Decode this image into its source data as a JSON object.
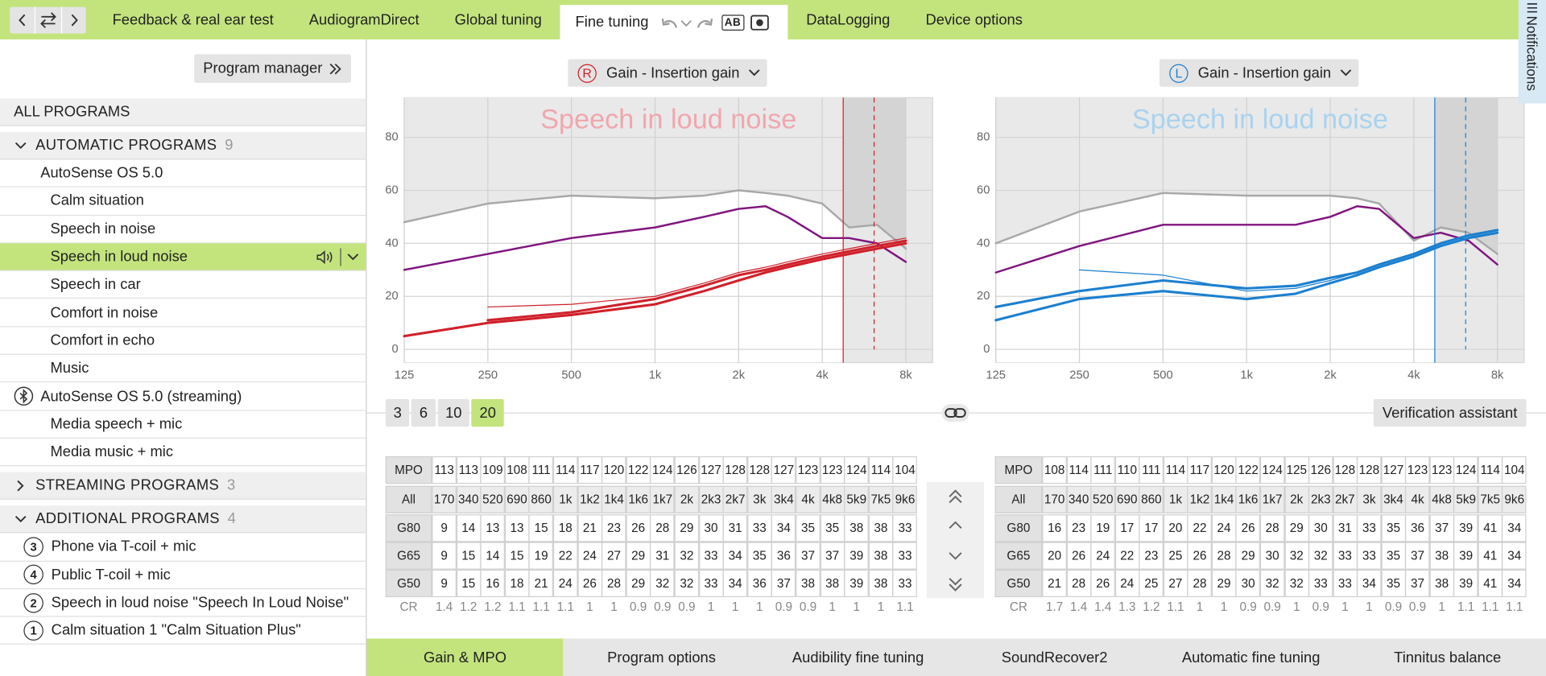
{
  "nav": {
    "tabs": [
      "Feedback & real ear test",
      "AudiogramDirect",
      "Global tuning",
      "Fine tuning",
      "DataLogging",
      "Device options"
    ],
    "active": 3,
    "compare": "AB",
    "notifications": "Notifications"
  },
  "sidebar": {
    "program_manager": "Program manager",
    "all_programs": "ALL PROGRAMS",
    "groups": [
      {
        "label": "AUTOMATIC PROGRAMS",
        "count": 9,
        "expanded": true,
        "items": [
          {
            "label": "AutoSense OS 5.0",
            "level": 1
          },
          {
            "label": "Calm situation",
            "level": 2
          },
          {
            "label": "Speech in noise",
            "level": 2
          },
          {
            "label": "Speech in loud noise",
            "level": 2,
            "selected": true
          },
          {
            "label": "Speech in car",
            "level": 2
          },
          {
            "label": "Comfort in noise",
            "level": 2
          },
          {
            "label": "Comfort in echo",
            "level": 2
          },
          {
            "label": "Music",
            "level": 2
          },
          {
            "label": "AutoSense OS 5.0 (streaming)",
            "level": 1,
            "icon": "bluetooth"
          },
          {
            "label": "Media speech + mic",
            "level": 2
          },
          {
            "label": "Media music + mic",
            "level": 2
          }
        ]
      },
      {
        "label": "STREAMING PROGRAMS",
        "count": 3,
        "expanded": false,
        "items": []
      },
      {
        "label": "ADDITIONAL PROGRAMS",
        "count": 4,
        "expanded": true,
        "items": [
          {
            "label": "Phone via T-coil + mic",
            "badge": 3
          },
          {
            "label": "Public T-coil + mic",
            "badge": 4
          },
          {
            "label": "Speech in loud noise \"Speech In Loud Noise\"",
            "badge": 2
          },
          {
            "label": "Calm situation 1 \"Calm Situation Plus\"",
            "badge": 1
          }
        ]
      }
    ]
  },
  "chart_data": [
    {
      "type": "line",
      "badge": "R",
      "selector": "Gain - Insertion gain",
      "title": "Speech in loud noise",
      "title_color": "#f0a7ad",
      "marker_color": "#d0202a",
      "x": [
        125,
        250,
        500,
        1000,
        1500,
        2000,
        2500,
        3000,
        4000,
        5000,
        6300,
        8000
      ],
      "xlim": [
        125,
        10000
      ],
      "log_x": true,
      "xticks": [
        125,
        250,
        500,
        {
          "value": 1000,
          "label": "1k"
        },
        {
          "value": 2000,
          "label": "2k"
        },
        {
          "value": 4000,
          "label": "4k"
        },
        {
          "value": 8000,
          "label": "8k"
        }
      ],
      "ylim": [
        -5,
        95
      ],
      "yticks": [
        0,
        20,
        40,
        60,
        80
      ],
      "grid": true,
      "xmarkers": [
        4760,
        6150
      ],
      "mpo_area": 0,
      "series": [
        {
          "color": "#a8a8a8",
          "width": 2,
          "values": [
            48,
            55,
            58,
            57,
            58,
            60,
            59,
            58,
            55,
            46,
            47,
            38
          ]
        },
        {
          "color": "#80157f",
          "width": 2,
          "values": [
            30,
            36,
            42,
            46,
            50,
            53,
            54,
            50,
            42,
            42,
            40,
            33
          ]
        },
        {
          "color": "#d0202a",
          "width": 1,
          "values": [
            null,
            16,
            17,
            20,
            25,
            29,
            31,
            33,
            36,
            38,
            40,
            42
          ]
        },
        {
          "color": "#d0202a",
          "width": 2.5,
          "values": [
            null,
            11,
            14,
            19,
            24,
            28,
            30,
            32,
            35,
            37,
            39,
            41
          ]
        },
        {
          "color": "#d0202a",
          "width": 2.5,
          "values": [
            5,
            10,
            13,
            17,
            22,
            26,
            29,
            31,
            34,
            36,
            38,
            40
          ]
        }
      ]
    },
    {
      "type": "line",
      "badge": "L",
      "selector": "Gain - Insertion gain",
      "title": "Speech in loud noise",
      "title_color": "#a9d3ef",
      "marker_color": "#1b7fcf",
      "x": [
        125,
        250,
        500,
        1000,
        1500,
        2000,
        2500,
        3000,
        4000,
        5000,
        6300,
        8000
      ],
      "xlim": [
        125,
        10000
      ],
      "log_x": true,
      "xticks": [
        125,
        250,
        500,
        {
          "value": 1000,
          "label": "1k"
        },
        {
          "value": 2000,
          "label": "2k"
        },
        {
          "value": 4000,
          "label": "4k"
        },
        {
          "value": 8000,
          "label": "8k"
        }
      ],
      "ylim": [
        -5,
        95
      ],
      "yticks": [
        0,
        20,
        40,
        60,
        80
      ],
      "grid": true,
      "xmarkers": [
        4760,
        6150
      ],
      "mpo_area": 0,
      "series": [
        {
          "color": "#a8a8a8",
          "width": 2,
          "values": [
            40,
            52,
            59,
            58,
            58,
            58,
            57,
            55,
            41,
            46,
            44,
            36
          ]
        },
        {
          "color": "#80157f",
          "width": 2,
          "values": [
            29,
            39,
            47,
            47,
            47,
            50,
            54,
            53,
            42,
            44,
            41,
            32
          ]
        },
        {
          "color": "#1b7fcf",
          "width": 1,
          "values": [
            null,
            30,
            28,
            22,
            23,
            26,
            29,
            32,
            36,
            40,
            43,
            45
          ]
        },
        {
          "color": "#1b7fcf",
          "width": 2.5,
          "values": [
            16,
            22,
            26,
            23,
            24,
            27,
            29,
            32,
            36,
            40,
            43,
            45
          ]
        },
        {
          "color": "#1b7fcf",
          "width": 2.5,
          "values": [
            11,
            19,
            22,
            19,
            21,
            25,
            28,
            31,
            35,
            39,
            42,
            44
          ]
        }
      ]
    }
  ],
  "resolution": {
    "options": [
      3,
      6,
      10,
      20
    ],
    "active": 3
  },
  "verification": "Verification assistant",
  "tables": [
    {
      "rows": [
        {
          "label": "MPO",
          "cells": [
            113,
            113,
            109,
            108,
            111,
            114,
            117,
            120,
            122,
            124,
            126,
            127,
            128,
            128,
            127,
            123,
            123,
            124,
            114,
            104
          ]
        },
        {
          "label": "All",
          "header": true,
          "cells": [
            "170",
            "340",
            "520",
            "690",
            "860",
            "1k",
            "1k2",
            "1k4",
            "1k6",
            "1k7",
            "2k",
            "2k3",
            "2k7",
            "3k",
            "3k4",
            "4k",
            "4k8",
            "5k9",
            "7k5",
            "9k6"
          ]
        },
        {
          "label": "G80",
          "cells": [
            9,
            14,
            13,
            13,
            15,
            18,
            21,
            23,
            26,
            28,
            29,
            30,
            31,
            33,
            34,
            35,
            35,
            38,
            38,
            33
          ]
        },
        {
          "label": "G65",
          "cells": [
            9,
            15,
            14,
            15,
            19,
            22,
            24,
            27,
            29,
            31,
            32,
            33,
            34,
            35,
            36,
            37,
            37,
            39,
            38,
            33
          ]
        },
        {
          "label": "G50",
          "cells": [
            9,
            15,
            16,
            18,
            21,
            24,
            26,
            28,
            29,
            32,
            32,
            33,
            34,
            36,
            37,
            38,
            38,
            39,
            38,
            33
          ]
        },
        {
          "label": "CR",
          "plain": true,
          "cells": [
            1.4,
            1.2,
            1.2,
            1.1,
            1.1,
            1.1,
            1,
            1,
            0.9,
            0.9,
            0.9,
            1,
            1,
            1,
            0.9,
            0.9,
            1,
            1,
            1,
            1.1
          ]
        }
      ]
    },
    {
      "rows": [
        {
          "label": "MPO",
          "cells": [
            108,
            114,
            111,
            110,
            111,
            114,
            117,
            120,
            122,
            124,
            125,
            126,
            128,
            128,
            127,
            123,
            123,
            124,
            114,
            104
          ]
        },
        {
          "label": "All",
          "header": true,
          "cells": [
            "170",
            "340",
            "520",
            "690",
            "860",
            "1k",
            "1k2",
            "1k4",
            "1k6",
            "1k7",
            "2k",
            "2k3",
            "2k7",
            "3k",
            "3k4",
            "4k",
            "4k8",
            "5k9",
            "7k5",
            "9k6"
          ]
        },
        {
          "label": "G80",
          "cells": [
            16,
            23,
            19,
            17,
            17,
            20,
            22,
            24,
            26,
            28,
            29,
            30,
            31,
            33,
            35,
            36,
            37,
            39,
            41,
            34
          ]
        },
        {
          "label": "G65",
          "cells": [
            20,
            26,
            24,
            22,
            23,
            25,
            26,
            28,
            29,
            30,
            32,
            32,
            33,
            33,
            35,
            37,
            38,
            39,
            41,
            34
          ]
        },
        {
          "label": "G50",
          "cells": [
            21,
            28,
            26,
            24,
            25,
            27,
            28,
            29,
            30,
            32,
            32,
            33,
            33,
            34,
            35,
            37,
            38,
            39,
            41,
            34
          ]
        },
        {
          "label": "CR",
          "plain": true,
          "cells": [
            1.7,
            1.4,
            1.4,
            1.3,
            1.2,
            1.1,
            1,
            1,
            0.9,
            0.9,
            1,
            0.9,
            1,
            1,
            0.9,
            0.9,
            1,
            1.1,
            1.1,
            1.1
          ]
        }
      ]
    }
  ],
  "bottom_tabs": {
    "tabs": [
      "Gain & MPO",
      "Program options",
      "Audibility fine tuning",
      "SoundRecover2",
      "Automatic fine tuning",
      "Tinnitus balance"
    ],
    "active": 0
  }
}
